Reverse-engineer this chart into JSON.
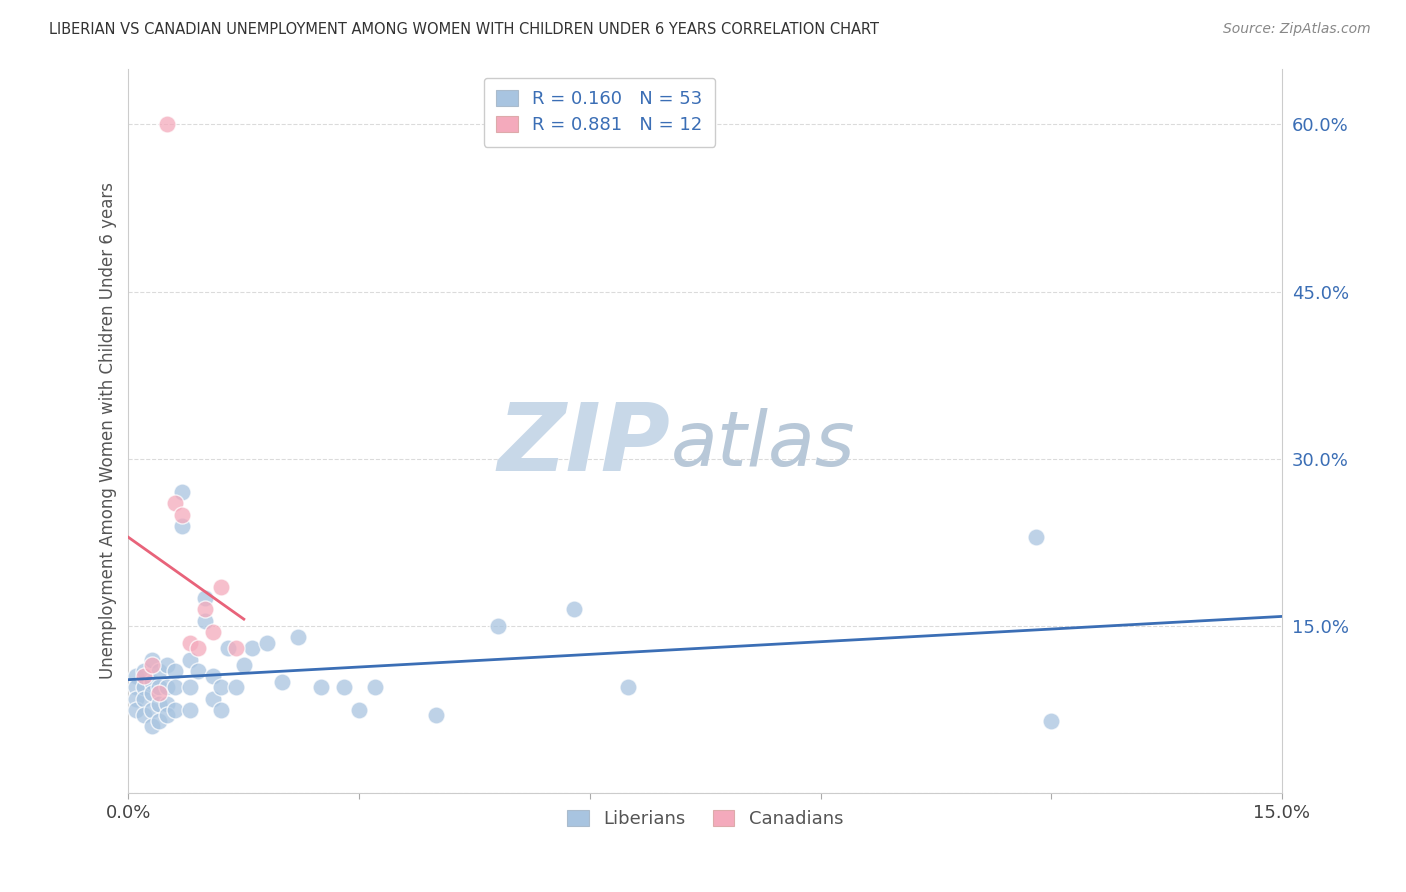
{
  "title": "LIBERIAN VS CANADIAN UNEMPLOYMENT AMONG WOMEN WITH CHILDREN UNDER 6 YEARS CORRELATION CHART",
  "source": "Source: ZipAtlas.com",
  "ylabel": "Unemployment Among Women with Children Under 6 years",
  "xlim": [
    0.0,
    0.15
  ],
  "ylim": [
    0.0,
    0.65
  ],
  "liberian_R": 0.16,
  "liberian_N": 53,
  "canadian_R": 0.881,
  "canadian_N": 12,
  "liberian_color": "#A8C4E0",
  "canadian_color": "#F4AABC",
  "liberian_line_color": "#3B6EB5",
  "canadian_line_color": "#E8637A",
  "watermark_zip_color": "#C8D8E8",
  "watermark_atlas_color": "#B8C8D8",
  "background_color": "#FFFFFF",
  "tick_color": "#3B6EB5",
  "grid_color": "#CCCCCC",
  "liberian_x": [
    0.001,
    0.001,
    0.001,
    0.001,
    0.002,
    0.002,
    0.002,
    0.002,
    0.003,
    0.003,
    0.003,
    0.003,
    0.003,
    0.004,
    0.004,
    0.004,
    0.004,
    0.005,
    0.005,
    0.005,
    0.005,
    0.006,
    0.006,
    0.006,
    0.007,
    0.007,
    0.008,
    0.008,
    0.008,
    0.009,
    0.01,
    0.01,
    0.011,
    0.011,
    0.012,
    0.012,
    0.013,
    0.014,
    0.015,
    0.016,
    0.018,
    0.02,
    0.022,
    0.025,
    0.028,
    0.03,
    0.032,
    0.04,
    0.048,
    0.058,
    0.065,
    0.118,
    0.12
  ],
  "liberian_y": [
    0.105,
    0.095,
    0.085,
    0.075,
    0.11,
    0.095,
    0.085,
    0.07,
    0.12,
    0.1,
    0.09,
    0.075,
    0.06,
    0.11,
    0.095,
    0.08,
    0.065,
    0.115,
    0.095,
    0.08,
    0.07,
    0.11,
    0.095,
    0.075,
    0.27,
    0.24,
    0.12,
    0.095,
    0.075,
    0.11,
    0.175,
    0.155,
    0.105,
    0.085,
    0.095,
    0.075,
    0.13,
    0.095,
    0.115,
    0.13,
    0.135,
    0.1,
    0.14,
    0.095,
    0.095,
    0.075,
    0.095,
    0.07,
    0.15,
    0.165,
    0.095,
    0.23,
    0.065
  ],
  "canadian_x": [
    0.002,
    0.003,
    0.004,
    0.005,
    0.006,
    0.007,
    0.008,
    0.009,
    0.01,
    0.011,
    0.012,
    0.014
  ],
  "canadian_y": [
    0.105,
    0.115,
    0.09,
    0.6,
    0.26,
    0.25,
    0.135,
    0.13,
    0.165,
    0.145,
    0.185,
    0.13
  ]
}
